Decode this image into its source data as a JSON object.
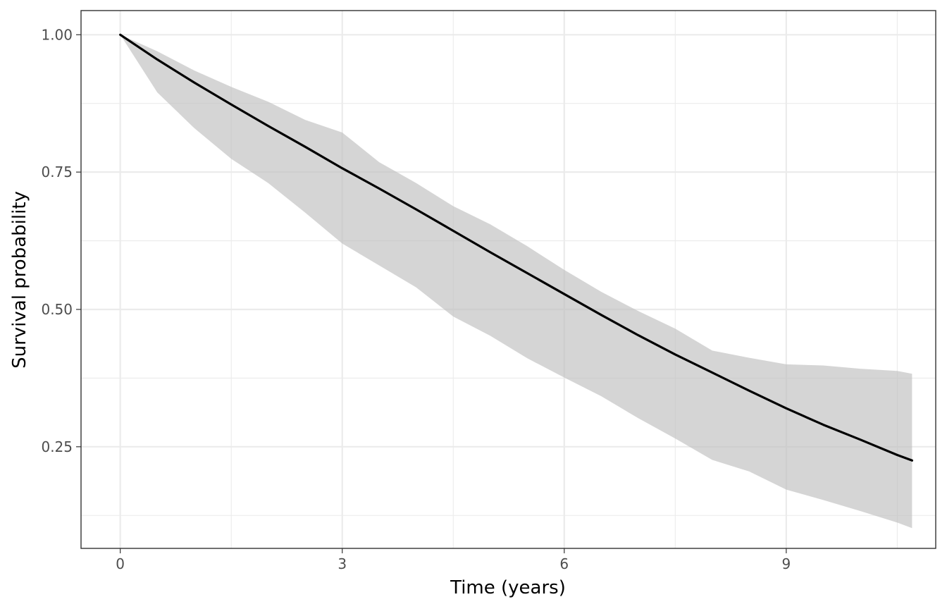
{
  "chart_data": {
    "type": "line",
    "title": "",
    "xlabel": "Time (years)",
    "ylabel": "Survival probability",
    "xlim": [
      -0.53,
      11.02
    ],
    "ylim": [
      0.065,
      1.044
    ],
    "x_ticks": [
      0,
      3,
      6,
      9
    ],
    "x_tick_labels": [
      "0",
      "3",
      "6",
      "9"
    ],
    "x_minor_ticks": [
      1.5,
      4.5,
      7.5,
      10.5
    ],
    "y_ticks": [
      0.25,
      0.5,
      0.75,
      1.0
    ],
    "y_tick_labels": [
      "0.25",
      "0.50",
      "0.75",
      "1.00"
    ],
    "y_minor_ticks": [
      0.125,
      0.375,
      0.625,
      0.875
    ],
    "grid": true,
    "legend": "none",
    "colors": {
      "line": "#000000",
      "ribbon": "#bfbfbf",
      "panel_border": "#333333",
      "grid": "#ebebeb",
      "background": "#ffffff"
    },
    "series": [
      {
        "x": [
          0,
          0.5,
          1,
          1.5,
          2,
          2.5,
          3,
          3.5,
          4,
          4.5,
          5,
          5.5,
          6,
          6.5,
          7,
          7.5,
          8,
          8.5,
          9,
          9.5,
          10,
          10.5,
          10.7
        ],
        "values": [
          1.0,
          0.955,
          0.913,
          0.873,
          0.834,
          0.796,
          0.757,
          0.72,
          0.682,
          0.643,
          0.604,
          0.566,
          0.528,
          0.49,
          0.453,
          0.418,
          0.385,
          0.352,
          0.32,
          0.29,
          0.263,
          0.235,
          0.225
        ],
        "lower": [
          1.0,
          0.895,
          0.83,
          0.774,
          0.73,
          0.676,
          0.62,
          0.58,
          0.54,
          0.487,
          0.452,
          0.411,
          0.376,
          0.342,
          0.302,
          0.265,
          0.226,
          0.205,
          0.172,
          0.153,
          0.133,
          0.112,
          0.102
        ],
        "upper": [
          1.0,
          0.97,
          0.935,
          0.905,
          0.878,
          0.845,
          0.822,
          0.768,
          0.73,
          0.688,
          0.655,
          0.615,
          0.572,
          0.532,
          0.497,
          0.465,
          0.425,
          0.412,
          0.4,
          0.398,
          0.392,
          0.388,
          0.383
        ]
      }
    ]
  }
}
